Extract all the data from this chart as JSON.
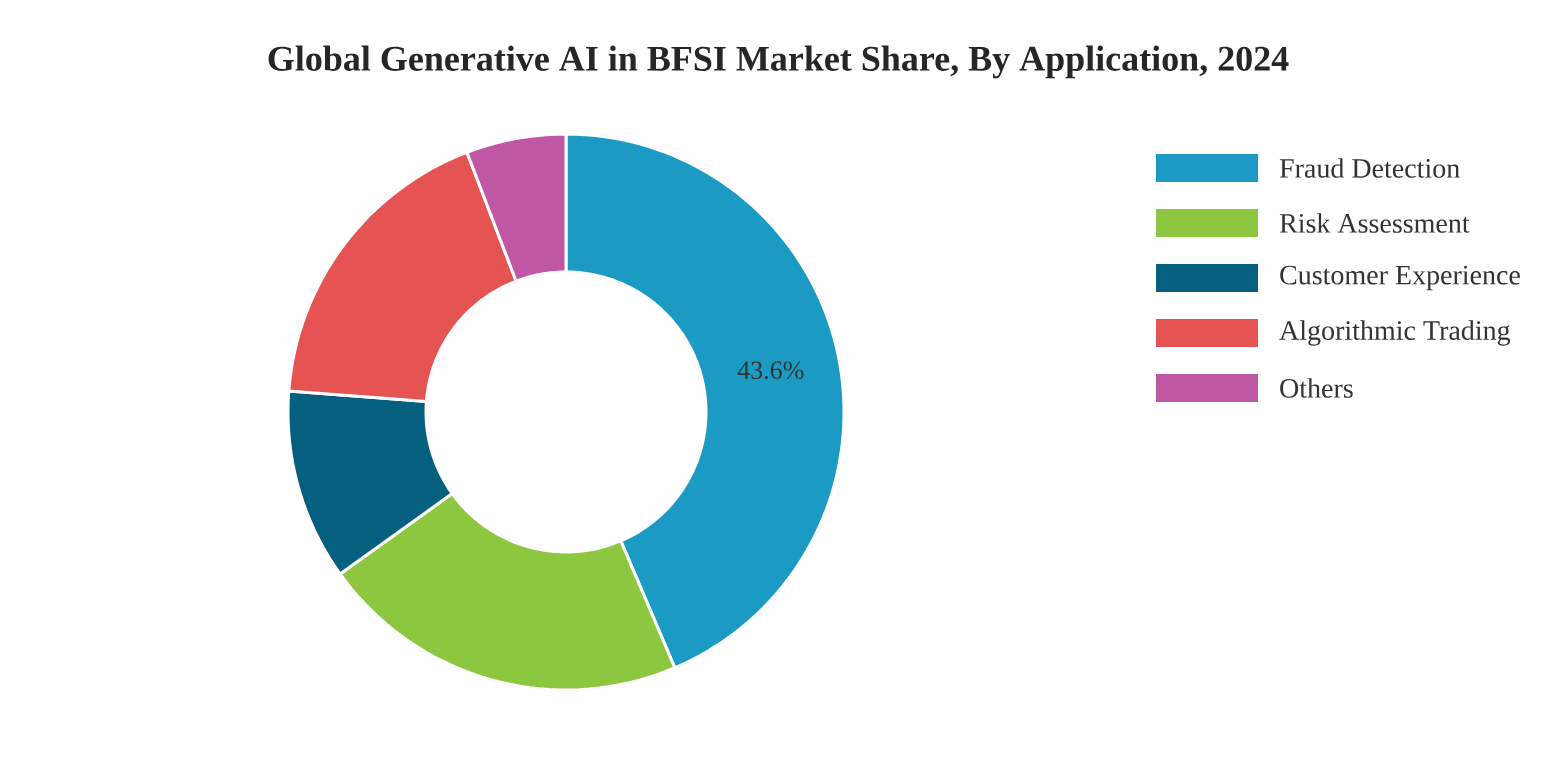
{
  "chart_data": {
    "type": "donut",
    "title": "Global Generative AI in BFSI Market Share, By Application, 2024",
    "categories": [
      "Fraud Detection",
      "Risk Assessment",
      "Customer Experience",
      "Algorithmic Trading",
      "Others"
    ],
    "values": [
      43.6,
      21.5,
      11.1,
      18.0,
      5.8
    ],
    "colors": [
      "#1b9ac4",
      "#8dc63f",
      "#05607f",
      "#e65353",
      "#c057a5"
    ],
    "value_labels": [
      "43.6%",
      null,
      null,
      null,
      null
    ],
    "legend": "right"
  }
}
